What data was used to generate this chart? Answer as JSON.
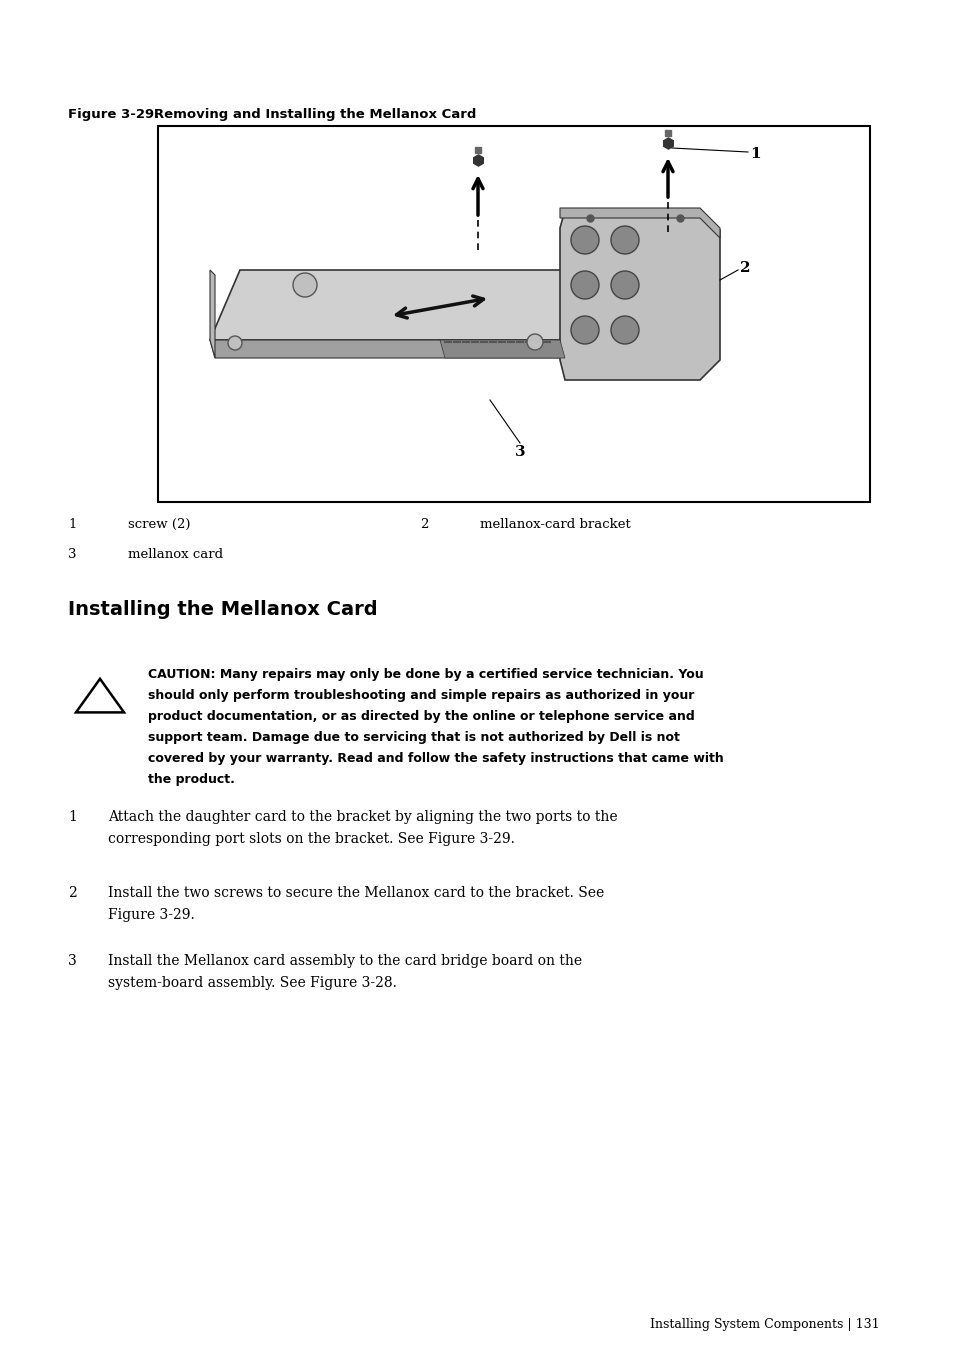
{
  "bg_color": "#ffffff",
  "figure_caption_bold": "Figure 3-29.",
  "figure_caption_rest": "   Removing and Installing the Mellanox Card",
  "section_title": "Installing the Mellanox Card",
  "caution_lines": [
    "CAUTION: Many repairs may only be done by a certified service technician. You",
    "should only perform troubleshooting and simple repairs as authorized in your",
    "product documentation, or as directed by the online or telephone service and",
    "support team. Damage due to servicing that is not authorized by Dell is not",
    "covered by your warranty. Read and follow the safety instructions that came with",
    "the product."
  ],
  "step1_line1": "Attach the daughter card to the bracket by aligning the two ports to the",
  "step1_line2": "corresponding port slots on the bracket. See Figure 3-29.",
  "step2_line1": "Install the two screws to secure the Mellanox card to the bracket. See",
  "step2_line2": "Figure 3-29.",
  "step3_line1": "Install the Mellanox card assembly to the card bridge board on the",
  "step3_line2": "system-board assembly. See Figure 3-28.",
  "footer_text": "Installing System Components | 131",
  "leg1_num": "1",
  "leg1_label": "screw (2)",
  "leg2_num": "2",
  "leg2_label": "mellanox-card bracket",
  "leg3_num": "3",
  "leg3_label": "mellanox card"
}
